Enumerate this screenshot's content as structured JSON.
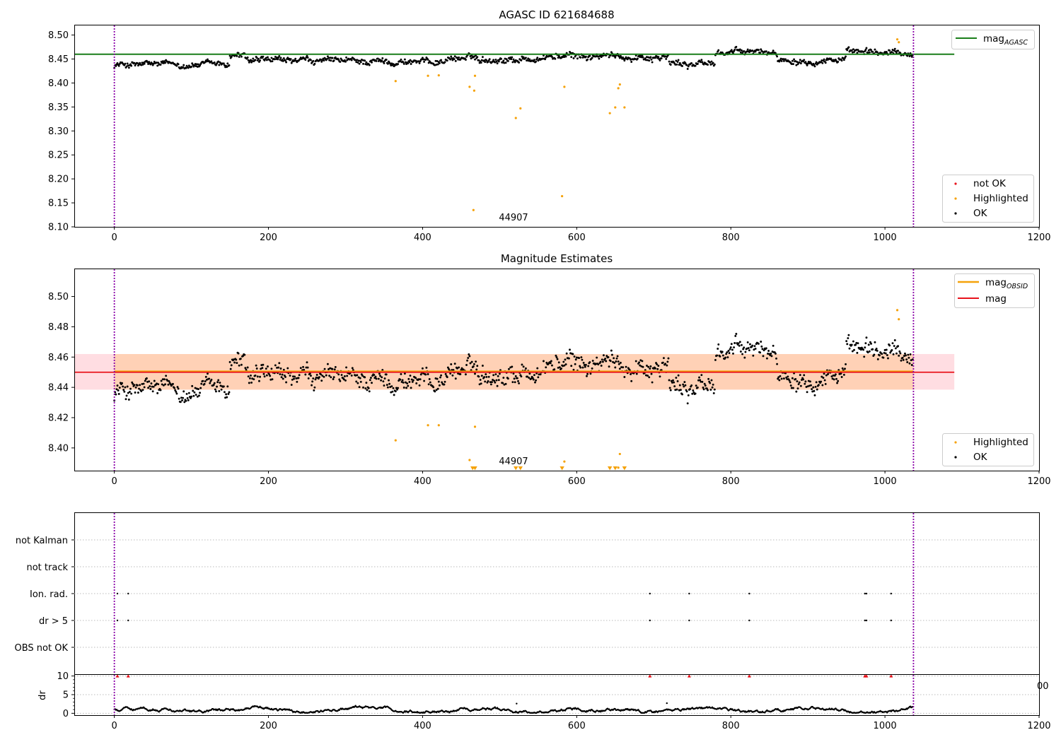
{
  "figure": {
    "title": "AGASC ID 621684688",
    "panel2_title": "Magnitude Estimates"
  },
  "chart_data": [
    {
      "type": "scatter",
      "title": "AGASC ID 621684688",
      "xlim": [
        -52,
        1200
      ],
      "ylim": [
        8.1,
        8.52
      ],
      "xticks": [
        "0",
        "200",
        "400",
        "600",
        "800",
        "1000",
        "1200"
      ],
      "yticks": [
        "8.10",
        "8.15",
        "8.20",
        "8.25",
        "8.30",
        "8.35",
        "8.40",
        "8.45",
        "8.50"
      ],
      "reference_line": {
        "name": "mag_AGASC",
        "value": 8.46,
        "x_end": 1090,
        "color": "#1a7f1a"
      },
      "legend_top": {
        "label": "mag",
        "sub": "AGASC"
      },
      "legend_bottom": [
        {
          "label": "not OK",
          "color": "#e8121b"
        },
        {
          "label": "Highlighted",
          "color": "#f5a20a"
        },
        {
          "label": "OK",
          "color": "#000000"
        }
      ],
      "obsid_boundaries": [
        0,
        1037
      ],
      "annotation": {
        "text": "44907",
        "x": 518
      },
      "ok_series": {
        "name": "OK",
        "n": 1037,
        "mean": 8.45,
        "spread": 0.015
      },
      "highlighted": [
        {
          "x": 365,
          "y": 8.404
        },
        {
          "x": 407,
          "y": 8.415
        },
        {
          "x": 421,
          "y": 8.416
        },
        {
          "x": 461,
          "y": 8.392
        },
        {
          "x": 466,
          "y": 8.135
        },
        {
          "x": 467,
          "y": 8.384
        },
        {
          "x": 468,
          "y": 8.415
        },
        {
          "x": 521,
          "y": 8.327
        },
        {
          "x": 527,
          "y": 8.347
        },
        {
          "x": 581,
          "y": 8.164
        },
        {
          "x": 584,
          "y": 8.392
        },
        {
          "x": 643,
          "y": 8.337
        },
        {
          "x": 650,
          "y": 8.349
        },
        {
          "x": 654,
          "y": 8.389
        },
        {
          "x": 656,
          "y": 8.397
        },
        {
          "x": 662,
          "y": 8.349
        },
        {
          "x": 1016,
          "y": 8.491
        },
        {
          "x": 1018,
          "y": 8.485
        }
      ]
    },
    {
      "type": "scatter",
      "title": "Magnitude Estimates",
      "xlim": [
        -52,
        1200
      ],
      "ylim": [
        8.385,
        8.518
      ],
      "xticks": [
        "0",
        "200",
        "400",
        "600",
        "800",
        "1000",
        "1200"
      ],
      "yticks": [
        "8.40",
        "8.42",
        "8.44",
        "8.46",
        "8.48",
        "8.50"
      ],
      "mag_obsid": {
        "value": 8.4505,
        "color": "#f5a20a"
      },
      "mag": {
        "value": 8.45,
        "color": "#e8121b"
      },
      "band_mag": [
        8.4385,
        8.462
      ],
      "band_obsid": [
        8.4385,
        8.462
      ],
      "legend_top": [
        {
          "label": "mag",
          "sub": "OBSID",
          "color": "#f5a20a"
        },
        {
          "label": "mag",
          "sub": "",
          "color": "#e8121b"
        }
      ],
      "legend_bottom": [
        {
          "label": "Highlighted",
          "color": "#f5a20a"
        },
        {
          "label": "OK",
          "color": "#000000"
        }
      ],
      "annotation": {
        "text": "44907",
        "x": 518
      },
      "highlighted": [
        {
          "x": 365,
          "y": 8.405
        },
        {
          "x": 407,
          "y": 8.415
        },
        {
          "x": 421,
          "y": 8.415
        },
        {
          "x": 461,
          "y": 8.392
        },
        {
          "x": 468,
          "y": 8.414
        },
        {
          "x": 584,
          "y": 8.391
        },
        {
          "x": 654,
          "y": 8.387
        },
        {
          "x": 656,
          "y": 8.396
        },
        {
          "x": 1016,
          "y": 8.491
        },
        {
          "x": 1018,
          "y": 8.485
        }
      ],
      "below_axis_markers": [
        465,
        468,
        521,
        527,
        581,
        643,
        650,
        662
      ]
    },
    {
      "type": "scatter",
      "title": "",
      "categories": [
        "not Kalman",
        "not track",
        "Ion. rad.",
        "dr > 5",
        "OBS not OK"
      ],
      "flags": {
        "Ion. rad.": [
          4,
          18,
          695,
          746,
          824,
          974,
          976,
          1008
        ],
        "dr > 5": [
          4,
          18,
          695,
          746,
          824,
          974,
          976,
          1008
        ]
      }
    },
    {
      "type": "scatter",
      "ylabel": "dr",
      "ylim": [
        -0.5,
        10.3
      ],
      "yticks": [
        "0",
        "5",
        "10"
      ],
      "xticks": [
        "0",
        "200",
        "400",
        "600",
        "800",
        "1000",
        "1200"
      ],
      "clipped_at_10": [
        4,
        18,
        695,
        746,
        824,
        974,
        976,
        1008
      ],
      "spikes": [
        {
          "x": 522,
          "y": 2.6
        },
        {
          "x": 717,
          "y": 2.7
        }
      ],
      "offscreen_tick_fragment": "00"
    }
  ]
}
